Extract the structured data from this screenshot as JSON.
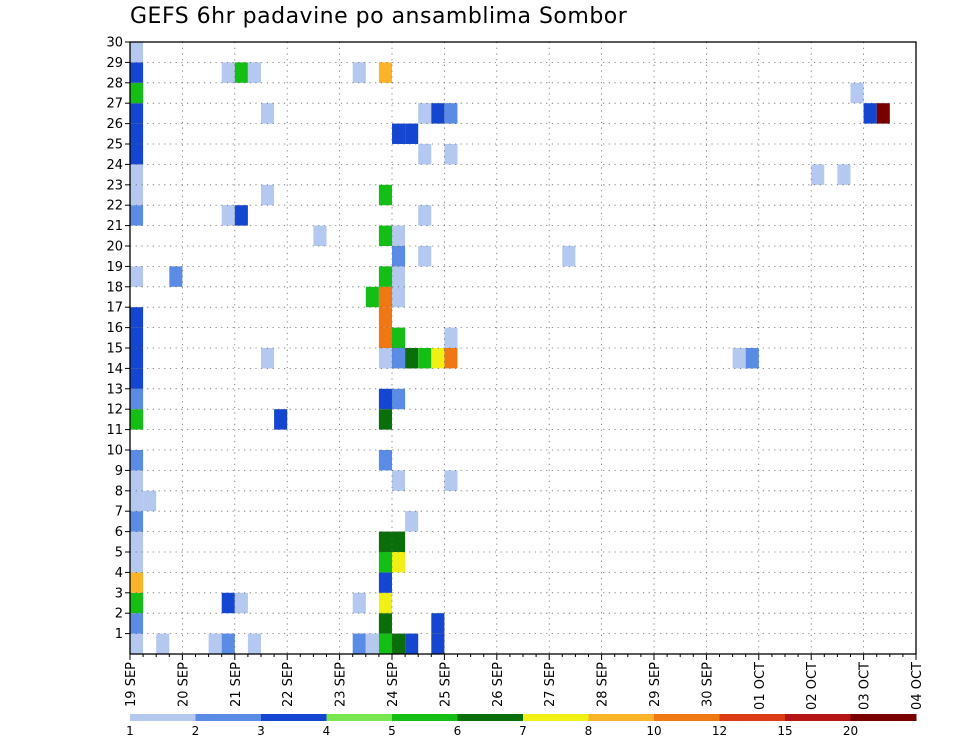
{
  "chart_data": {
    "type": "heatmap",
    "title": "GEFS 6hr padavine po ansamblima Sombor",
    "y_ticks": [
      "1",
      "2",
      "3",
      "4",
      "5",
      "6",
      "7",
      "8",
      "9",
      "10",
      "11",
      "12",
      "13",
      "14",
      "15",
      "16",
      "17",
      "18",
      "19",
      "20",
      "21",
      "22",
      "23",
      "24",
      "25",
      "26",
      "27",
      "28",
      "29",
      "30"
    ],
    "ylim": [
      0,
      30
    ],
    "x_ticks": [
      "19 SEP",
      "20 SEP",
      "21 SEP",
      "22 SEP",
      "23 SEP",
      "24 SEP",
      "25 SEP",
      "26 SEP",
      "27 SEP",
      "28 SEP",
      "29 SEP",
      "30 SEP",
      "01 OCT",
      "02 OCT",
      "03 OCT",
      "04 OCT"
    ],
    "time_step_hours": 6,
    "grid": true,
    "colorbar": {
      "placement": "bottom",
      "labels": [
        "1",
        "2",
        "3",
        "4",
        "5",
        "6",
        "7",
        "8",
        "10",
        "12",
        "15",
        "20"
      ],
      "colors": [
        "#b4c8f0",
        "#5a8ce6",
        "#1446d2",
        "#78e650",
        "#14be14",
        "#0a6e0a",
        "#f0f014",
        "#fab428",
        "#f07814",
        "#dc3c14",
        "#b41414",
        "#780000"
      ]
    },
    "cells": [
      {
        "s": 0,
        "m": 0,
        "v": 1
      },
      {
        "s": 0,
        "m": 1,
        "v": 2
      },
      {
        "s": 0,
        "m": 2,
        "v": 5
      },
      {
        "s": 0,
        "m": 3,
        "v": 8
      },
      {
        "s": 0,
        "m": 4,
        "v": 1
      },
      {
        "s": 0,
        "m": 5,
        "v": 1
      },
      {
        "s": 0,
        "m": 6,
        "v": 2
      },
      {
        "s": 0,
        "m": 7,
        "v": 1
      },
      {
        "s": 0,
        "m": 8,
        "v": 1
      },
      {
        "s": 0,
        "m": 9,
        "v": 2
      },
      {
        "s": 0,
        "m": 11,
        "v": 5
      },
      {
        "s": 0,
        "m": 12,
        "v": 2
      },
      {
        "s": 0,
        "m": 13,
        "v": 3
      },
      {
        "s": 0,
        "m": 14,
        "v": 3
      },
      {
        "s": 0,
        "m": 15,
        "v": 3
      },
      {
        "s": 0,
        "m": 16,
        "v": 3
      },
      {
        "s": 0,
        "m": 18,
        "v": 1
      },
      {
        "s": 0,
        "m": 21,
        "v": 2
      },
      {
        "s": 0,
        "m": 22,
        "v": 1
      },
      {
        "s": 0,
        "m": 23,
        "v": 1
      },
      {
        "s": 0,
        "m": 24,
        "v": 3
      },
      {
        "s": 0,
        "m": 25,
        "v": 3
      },
      {
        "s": 0,
        "m": 26,
        "v": 3
      },
      {
        "s": 0,
        "m": 27,
        "v": 5
      },
      {
        "s": 0,
        "m": 28,
        "v": 3
      },
      {
        "s": 0,
        "m": 29,
        "v": 1
      },
      {
        "s": 1,
        "m": 7,
        "v": 1
      },
      {
        "s": 2,
        "m": 0,
        "v": 1
      },
      {
        "s": 3,
        "m": 18,
        "v": 2
      },
      {
        "s": 6,
        "m": 0,
        "v": 1
      },
      {
        "s": 7,
        "m": 0,
        "v": 2
      },
      {
        "s": 7,
        "m": 2,
        "v": 3
      },
      {
        "s": 7,
        "m": 21,
        "v": 1
      },
      {
        "s": 7,
        "m": 28,
        "v": 1
      },
      {
        "s": 8,
        "m": 2,
        "v": 1
      },
      {
        "s": 8,
        "m": 21,
        "v": 3
      },
      {
        "s": 8,
        "m": 28,
        "v": 5
      },
      {
        "s": 9,
        "m": 0,
        "v": 1
      },
      {
        "s": 9,
        "m": 28,
        "v": 1
      },
      {
        "s": 10,
        "m": 14,
        "v": 1
      },
      {
        "s": 10,
        "m": 22,
        "v": 1
      },
      {
        "s": 10,
        "m": 26,
        "v": 1
      },
      {
        "s": 11,
        "m": 11,
        "v": 3
      },
      {
        "s": 14,
        "m": 20,
        "v": 1
      },
      {
        "s": 17,
        "m": 0,
        "v": 2
      },
      {
        "s": 17,
        "m": 2,
        "v": 1
      },
      {
        "s": 17,
        "m": 28,
        "v": 1
      },
      {
        "s": 18,
        "m": 0,
        "v": 1
      },
      {
        "s": 18,
        "m": 17,
        "v": 5
      },
      {
        "s": 19,
        "m": 0,
        "v": 5
      },
      {
        "s": 19,
        "m": 1,
        "v": 6
      },
      {
        "s": 19,
        "m": 2,
        "v": 7
      },
      {
        "s": 19,
        "m": 3,
        "v": 3
      },
      {
        "s": 19,
        "m": 4,
        "v": 5
      },
      {
        "s": 19,
        "m": 5,
        "v": 6
      },
      {
        "s": 19,
        "m": 9,
        "v": 2
      },
      {
        "s": 19,
        "m": 11,
        "v": 6
      },
      {
        "s": 19,
        "m": 12,
        "v": 3
      },
      {
        "s": 19,
        "m": 14,
        "v": 1
      },
      {
        "s": 19,
        "m": 15,
        "v": 10
      },
      {
        "s": 19,
        "m": 16,
        "v": 10
      },
      {
        "s": 19,
        "m": 17,
        "v": 10
      },
      {
        "s": 19,
        "m": 18,
        "v": 5
      },
      {
        "s": 19,
        "m": 20,
        "v": 5
      },
      {
        "s": 19,
        "m": 22,
        "v": 5
      },
      {
        "s": 19,
        "m": 28,
        "v": 8
      },
      {
        "s": 20,
        "m": 0,
        "v": 6
      },
      {
        "s": 20,
        "m": 4,
        "v": 7
      },
      {
        "s": 20,
        "m": 5,
        "v": 6
      },
      {
        "s": 20,
        "m": 8,
        "v": 1
      },
      {
        "s": 20,
        "m": 12,
        "v": 2
      },
      {
        "s": 20,
        "m": 14,
        "v": 2
      },
      {
        "s": 20,
        "m": 15,
        "v": 5
      },
      {
        "s": 20,
        "m": 17,
        "v": 1
      },
      {
        "s": 20,
        "m": 18,
        "v": 1
      },
      {
        "s": 20,
        "m": 19,
        "v": 2
      },
      {
        "s": 20,
        "m": 20,
        "v": 1
      },
      {
        "s": 20,
        "m": 25,
        "v": 3
      },
      {
        "s": 21,
        "m": 0,
        "v": 3
      },
      {
        "s": 21,
        "m": 6,
        "v": 1
      },
      {
        "s": 21,
        "m": 14,
        "v": 6
      },
      {
        "s": 21,
        "m": 25,
        "v": 3
      },
      {
        "s": 22,
        "m": 14,
        "v": 5
      },
      {
        "s": 22,
        "m": 19,
        "v": 1
      },
      {
        "s": 22,
        "m": 21,
        "v": 1
      },
      {
        "s": 22,
        "m": 24,
        "v": 1
      },
      {
        "s": 22,
        "m": 26,
        "v": 1
      },
      {
        "s": 23,
        "m": 0,
        "v": 3
      },
      {
        "s": 23,
        "m": 1,
        "v": 3
      },
      {
        "s": 23,
        "m": 14,
        "v": 7
      },
      {
        "s": 23,
        "m": 26,
        "v": 3
      },
      {
        "s": 24,
        "m": 8,
        "v": 1
      },
      {
        "s": 24,
        "m": 14,
        "v": 10
      },
      {
        "s": 24,
        "m": 15,
        "v": 1
      },
      {
        "s": 24,
        "m": 24,
        "v": 1
      },
      {
        "s": 24,
        "m": 26,
        "v": 2
      },
      {
        "s": 33,
        "m": 19,
        "v": 1
      },
      {
        "s": 46,
        "m": 14,
        "v": 1
      },
      {
        "s": 47,
        "m": 14,
        "v": 2
      },
      {
        "s": 52,
        "m": 23,
        "v": 1
      },
      {
        "s": 54,
        "m": 23,
        "v": 1
      },
      {
        "s": 55,
        "m": 27,
        "v": 1
      },
      {
        "s": 56,
        "m": 26,
        "v": 3
      },
      {
        "s": 57,
        "m": 26,
        "v": 20
      }
    ]
  }
}
